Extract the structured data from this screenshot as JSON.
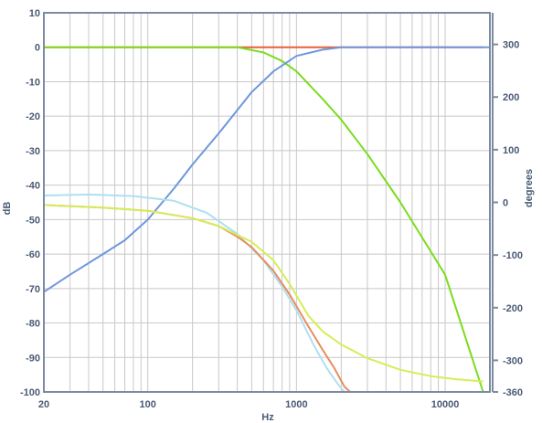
{
  "chart_data": {
    "type": "line",
    "title": "",
    "xlabel": "Hz",
    "ylabel": "dB",
    "y2label": "degrees",
    "xscale": "log",
    "xlim": [
      20,
      20000
    ],
    "ylim": [
      -100,
      10
    ],
    "y2lim": [
      -360,
      360
    ],
    "grid": true,
    "legend": "none",
    "x_ticks": [
      20,
      100,
      1000,
      10000
    ],
    "x_tick_labels": [
      "20",
      "100",
      "1000",
      "10000"
    ],
    "y_ticks": [
      10,
      0,
      -10,
      -20,
      -30,
      -40,
      -50,
      -60,
      -70,
      -80,
      -90,
      -100
    ],
    "y_tick_labels": [
      "10",
      "0",
      "-10",
      "-20",
      "-30",
      "-40",
      "-50",
      "-60",
      "-70",
      "-80",
      "-90",
      "-100"
    ],
    "y2_ticks": [
      300,
      200,
      100,
      0,
      -100,
      -200,
      -300,
      -360
    ],
    "y2_tick_labels": [
      "300",
      "200",
      "100",
      "0",
      "-100",
      "-200",
      "-300",
      "-360"
    ],
    "colors": {
      "background": "#ffffff",
      "frame": "#7d8aa3",
      "grid": "#c8c8c8",
      "text": "#4a5a74"
    },
    "series": [
      {
        "axis": "left",
        "color": "#e8603a",
        "points": [
          [
            20,
            0
          ],
          [
            100,
            0
          ],
          [
            500,
            0
          ],
          [
            1000,
            0
          ],
          [
            2000,
            0
          ],
          [
            5000,
            0
          ],
          [
            18000,
            0
          ]
        ]
      },
      {
        "axis": "left",
        "color": "#7cdc1e",
        "points": [
          [
            20,
            0
          ],
          [
            100,
            0
          ],
          [
            400,
            0
          ],
          [
            600,
            -1.5
          ],
          [
            800,
            -4
          ],
          [
            1000,
            -7
          ],
          [
            1500,
            -15
          ],
          [
            2000,
            -21
          ],
          [
            3000,
            -31
          ],
          [
            5000,
            -45
          ],
          [
            10000,
            -66
          ],
          [
            18000,
            -100
          ]
        ]
      },
      {
        "axis": "left",
        "color": "#6f97dd",
        "points": [
          [
            20,
            -71
          ],
          [
            30,
            -66
          ],
          [
            50,
            -60
          ],
          [
            70,
            -56
          ],
          [
            100,
            -50
          ],
          [
            150,
            -41
          ],
          [
            200,
            -34
          ],
          [
            300,
            -25
          ],
          [
            500,
            -13
          ],
          [
            700,
            -7
          ],
          [
            1000,
            -2.5
          ],
          [
            1500,
            -0.7
          ],
          [
            2000,
            0
          ],
          [
            3000,
            0
          ],
          [
            5000,
            0
          ],
          [
            20000,
            0
          ]
        ]
      },
      {
        "axis": "right",
        "color": "#afe0f0",
        "points": [
          [
            20,
            13
          ],
          [
            40,
            15
          ],
          [
            80,
            12
          ],
          [
            150,
            3
          ],
          [
            250,
            -20
          ],
          [
            400,
            -60
          ],
          [
            600,
            -110
          ],
          [
            800,
            -160
          ],
          [
            1000,
            -205
          ],
          [
            1300,
            -270
          ],
          [
            1600,
            -315
          ],
          [
            1900,
            -345
          ],
          [
            2100,
            -360
          ]
        ]
      },
      {
        "axis": "right",
        "color": "#e98c5e",
        "points": [
          [
            20,
            -5
          ],
          [
            50,
            -10
          ],
          [
            100,
            -16
          ],
          [
            200,
            -30
          ],
          [
            300,
            -45
          ],
          [
            400,
            -65
          ],
          [
            500,
            -85
          ],
          [
            700,
            -130
          ],
          [
            900,
            -175
          ],
          [
            1200,
            -235
          ],
          [
            1500,
            -280
          ],
          [
            1800,
            -315
          ],
          [
            2100,
            -350
          ],
          [
            2300,
            -360
          ]
        ]
      },
      {
        "axis": "right",
        "color": "#d5ee58",
        "points": [
          [
            20,
            -5
          ],
          [
            50,
            -10
          ],
          [
            100,
            -16
          ],
          [
            200,
            -30
          ],
          [
            300,
            -45
          ],
          [
            500,
            -75
          ],
          [
            700,
            -110
          ],
          [
            900,
            -155
          ],
          [
            1200,
            -215
          ],
          [
            1500,
            -245
          ],
          [
            2000,
            -270
          ],
          [
            3000,
            -296
          ],
          [
            5000,
            -318
          ],
          [
            8000,
            -330
          ],
          [
            12000,
            -336
          ],
          [
            18000,
            -340
          ]
        ]
      }
    ]
  }
}
